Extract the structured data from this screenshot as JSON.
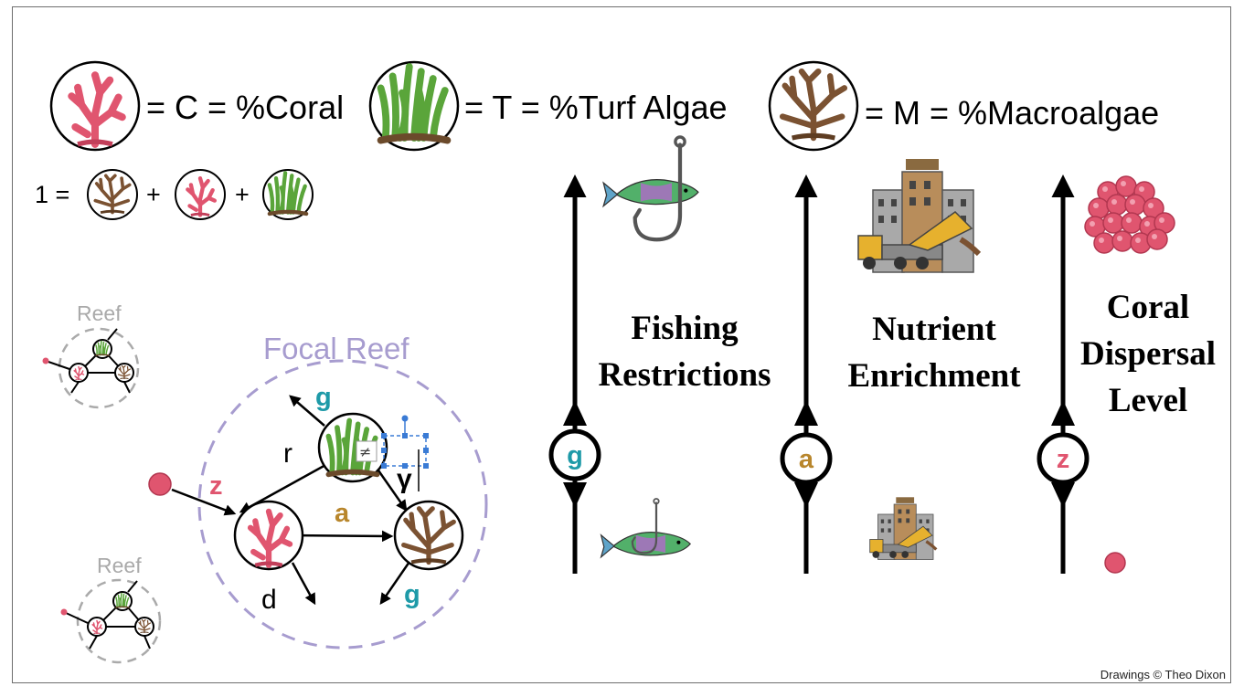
{
  "legend": {
    "coral": "= C = %Coral",
    "turf": "= T = %Turf Algae",
    "macro": "= M = %Macroalgae"
  },
  "equation": {
    "lhs": "1 =",
    "plus": "+"
  },
  "reef_label": "Reef",
  "focal_reef_label": "Focal Reef",
  "edges": {
    "r": "r",
    "g": "g",
    "gamma": "γ",
    "z": "z",
    "a": "a",
    "d": "d"
  },
  "axes": {
    "fishing": {
      "line1": "Fishing",
      "line2": "Restrictions",
      "param": "g"
    },
    "nutrient": {
      "line1": "Nutrient",
      "line2": "Enrichment",
      "param": "a"
    },
    "dispersal": {
      "line1": "Coral",
      "line2": "Dispersal",
      "line3": "Level",
      "param": "z"
    }
  },
  "credit": "Drawings © Theo Dixon",
  "colors": {
    "coral": "#e0556f",
    "turf": "#5aa53a",
    "macro": "#7b5232",
    "g": "#1e9aa8",
    "a": "#b8862c",
    "z": "#e0556f",
    "focal": "#a79ccf",
    "reef_gray": "#aaaaaa"
  }
}
